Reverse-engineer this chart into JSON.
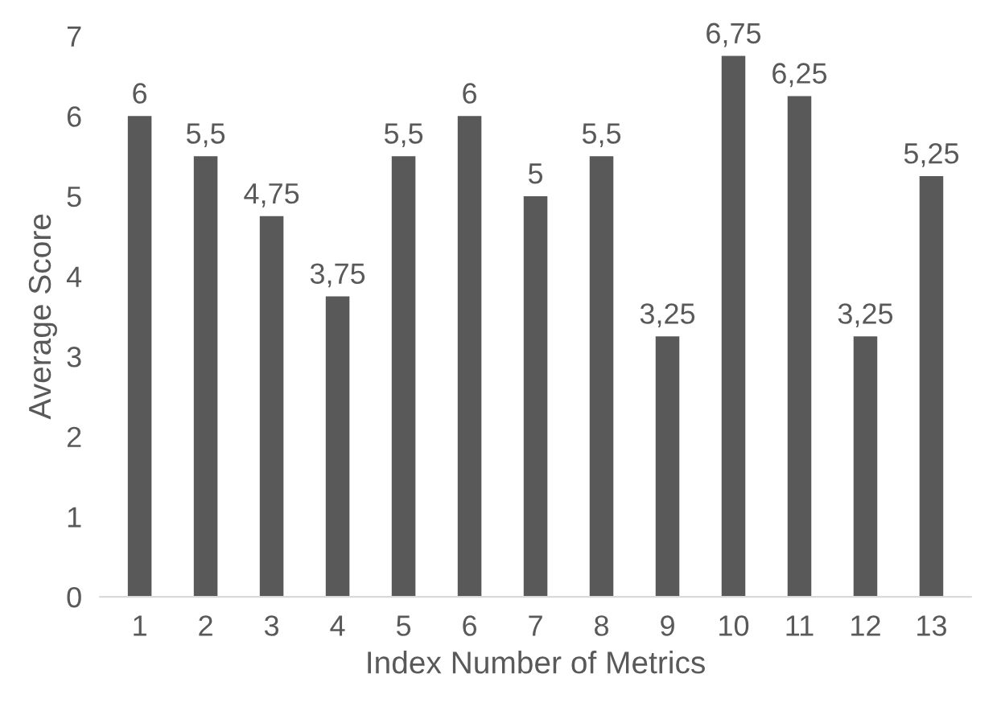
{
  "chart_data": {
    "type": "bar",
    "xlabel": "Index Number of Metrics",
    "ylabel": "Average Score",
    "categories": [
      "1",
      "2",
      "3",
      "4",
      "5",
      "6",
      "7",
      "8",
      "9",
      "10",
      "11",
      "12",
      "13"
    ],
    "values": [
      6,
      5.5,
      4.75,
      3.75,
      5.5,
      6,
      5,
      5.5,
      3.25,
      6.75,
      6.25,
      3.25,
      5.25
    ],
    "value_labels": [
      "6",
      "5,5",
      "4,75",
      "3,75",
      "5,5",
      "6",
      "5",
      "5,5",
      "3,25",
      "6,75",
      "6,25",
      "3,25",
      "5,25"
    ],
    "color": "#595959",
    "ylim": [
      0,
      7
    ],
    "yticks": [
      0,
      1,
      2,
      3,
      4,
      5,
      6,
      7
    ],
    "grid": false,
    "legend": false
  }
}
